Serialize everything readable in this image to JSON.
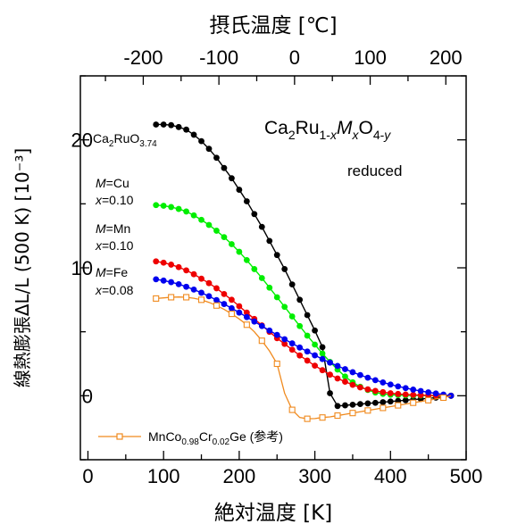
{
  "chart_data": {
    "type": "line",
    "xlabel": "絶対温度 [K]",
    "x2label": "摂氏温度 [℃]",
    "ylabel": "線熱膨張ΔL/L (500 K) [10⁻³]",
    "xlim": [
      -10,
      500
    ],
    "ylim": [
      -5,
      25
    ],
    "x_ticks": [
      0,
      100,
      200,
      300,
      400,
      500
    ],
    "x_tick_labels": [
      "0",
      "100",
      "200",
      "300",
      "400",
      "500"
    ],
    "x2_ticks": [
      -200,
      -100,
      0,
      100,
      200
    ],
    "x2_tick_labels": [
      "-200",
      "-100",
      "0",
      "100",
      "200"
    ],
    "y_ticks": [
      0,
      10,
      20
    ],
    "y_tick_labels": [
      "0",
      "10",
      "20"
    ],
    "title_formula": {
      "a": "Ca",
      "b": "2",
      "c": "Ru",
      "d": "1-",
      "e": "x",
      "f": "M",
      "g": "x",
      "h": "O",
      "i": "4-",
      "j": "y"
    },
    "subtitle": "reduced",
    "series": [
      {
        "label_main": "Ca",
        "label_s1": "2",
        "label_mid": "RuO",
        "label_s2": "3.74",
        "color": "#000000",
        "x": [
          90,
          100,
          110,
          120,
          130,
          140,
          150,
          160,
          170,
          180,
          190,
          200,
          210,
          220,
          230,
          240,
          250,
          260,
          270,
          280,
          290,
          300,
          310,
          320,
          330,
          340,
          350,
          360,
          370,
          380,
          390,
          400,
          410,
          420,
          430,
          440,
          450,
          460,
          470,
          480
        ],
        "y": [
          21.2,
          21.2,
          21.15,
          21.0,
          20.8,
          20.4,
          19.9,
          19.3,
          18.6,
          17.8,
          17.0,
          16.1,
          15.2,
          14.2,
          13.2,
          12.1,
          11.0,
          9.9,
          8.7,
          7.5,
          6.3,
          5.1,
          3.8,
          0.2,
          -0.8,
          -0.75,
          -0.7,
          -0.65,
          -0.6,
          -0.55,
          -0.5,
          -0.45,
          -0.4,
          -0.35,
          -0.3,
          -0.25,
          -0.2,
          -0.15,
          -0.1,
          0.0
        ]
      },
      {
        "label_m": "M",
        "label_rest": "=Cu",
        "label_x": "x",
        "label_val": "=0.10",
        "color": "#00ee00",
        "x": [
          90,
          100,
          110,
          120,
          130,
          140,
          150,
          160,
          170,
          180,
          190,
          200,
          210,
          220,
          230,
          240,
          250,
          260,
          270,
          280,
          290,
          300,
          310,
          320,
          330,
          340,
          350,
          360,
          370,
          380,
          390,
          400,
          410,
          420,
          430,
          440,
          450,
          460,
          470,
          480
        ],
        "y": [
          14.9,
          14.85,
          14.75,
          14.6,
          14.4,
          14.1,
          13.75,
          13.35,
          12.9,
          12.4,
          11.85,
          11.25,
          10.6,
          9.9,
          9.2,
          8.45,
          7.7,
          6.95,
          6.2,
          5.45,
          4.7,
          4.0,
          3.3,
          2.65,
          2.05,
          1.5,
          1.05,
          0.7,
          0.45,
          0.25,
          0.15,
          0.08,
          0.05,
          0.03,
          0.02,
          0.02,
          0.01,
          0.01,
          0.0,
          0.0
        ]
      },
      {
        "label_m": "M",
        "label_rest": "=Mn",
        "label_x": "x",
        "label_val": "=0.10",
        "color": "#ee0000",
        "x": [
          90,
          100,
          110,
          120,
          130,
          140,
          150,
          160,
          170,
          180,
          190,
          200,
          210,
          220,
          230,
          240,
          250,
          260,
          270,
          280,
          290,
          300,
          310,
          320,
          330,
          340,
          350,
          360,
          370,
          380,
          390,
          400,
          410,
          420,
          430,
          440,
          450,
          460,
          470,
          480
        ],
        "y": [
          10.5,
          10.4,
          10.25,
          10.05,
          9.8,
          9.5,
          9.15,
          8.8,
          8.4,
          7.95,
          7.5,
          7.0,
          6.5,
          6.0,
          5.5,
          5.0,
          4.5,
          4.05,
          3.6,
          3.15,
          2.75,
          2.35,
          2.0,
          1.65,
          1.35,
          1.1,
          0.85,
          0.65,
          0.5,
          0.38,
          0.28,
          0.2,
          0.14,
          0.1,
          0.07,
          0.05,
          0.03,
          0.02,
          0.01,
          0.0
        ]
      },
      {
        "label_m": "M",
        "label_rest": "=Fe",
        "label_x": "x",
        "label_val": "=0.08",
        "color": "#0000ee",
        "x": [
          90,
          100,
          110,
          120,
          130,
          140,
          150,
          160,
          170,
          180,
          190,
          200,
          210,
          220,
          230,
          240,
          250,
          260,
          270,
          280,
          290,
          300,
          310,
          320,
          330,
          340,
          350,
          360,
          370,
          380,
          390,
          400,
          410,
          420,
          430,
          440,
          450,
          460,
          470,
          480
        ],
        "y": [
          9.1,
          9.0,
          8.88,
          8.72,
          8.52,
          8.3,
          8.05,
          7.78,
          7.48,
          7.17,
          6.84,
          6.5,
          6.15,
          5.8,
          5.45,
          5.1,
          4.76,
          4.42,
          4.09,
          3.77,
          3.46,
          3.16,
          2.87,
          2.59,
          2.33,
          2.08,
          1.84,
          1.62,
          1.41,
          1.22,
          1.04,
          0.88,
          0.73,
          0.6,
          0.48,
          0.37,
          0.27,
          0.18,
          0.09,
          0.0
        ]
      },
      {
        "label_a": "MnCo",
        "label_s1": "0.98",
        "label_b": "Cr",
        "label_s2": "0.02",
        "label_c": "Ge (参考)",
        "color": "#f08a1e",
        "x": [
          90,
          100,
          110,
          120,
          130,
          140,
          150,
          160,
          170,
          180,
          190,
          200,
          210,
          220,
          230,
          240,
          250,
          260,
          270,
          280,
          290,
          300,
          310,
          320,
          330,
          340,
          350,
          360,
          370,
          380,
          390,
          400,
          410,
          420,
          430,
          440,
          450,
          460,
          470,
          480
        ],
        "y": [
          7.6,
          7.65,
          7.7,
          7.72,
          7.7,
          7.62,
          7.5,
          7.3,
          7.05,
          6.75,
          6.4,
          6.0,
          5.55,
          5.0,
          4.3,
          3.5,
          2.5,
          0.2,
          -1.1,
          -1.7,
          -1.8,
          -1.78,
          -1.7,
          -1.65,
          -1.55,
          -1.45,
          -1.35,
          -1.25,
          -1.15,
          -1.05,
          -0.95,
          -0.85,
          -0.75,
          -0.65,
          -0.55,
          -0.45,
          -0.35,
          -0.25,
          -0.15,
          0.0
        ]
      }
    ]
  }
}
